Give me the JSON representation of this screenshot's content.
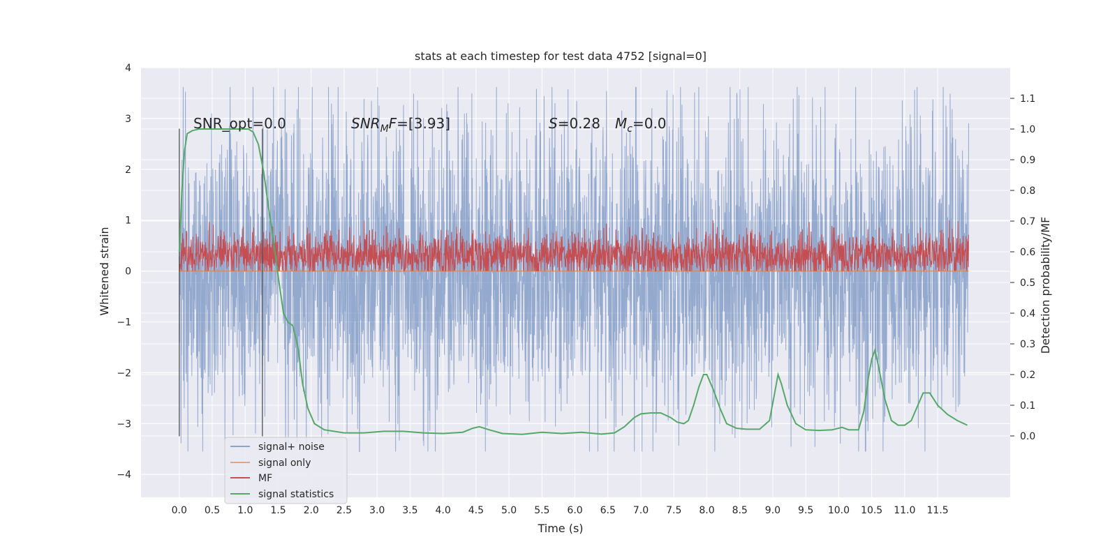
{
  "chart_data": {
    "type": "line",
    "title": "stats at each timestep for test data 4752 [signal=0]",
    "xlabel": "Time (s)",
    "ylabel": "Whitened strain",
    "ylabel_right": "Detection probability/MF",
    "xlim": [
      -0.58,
      12.6
    ],
    "ylim": [
      -4.45,
      4.0
    ],
    "y2lim": [
      -0.2,
      1.2
    ],
    "grid": true,
    "legend_placement": "lower-left",
    "x_ticks": [
      "0.0",
      "0.5",
      "1.0",
      "1.5",
      "2.0",
      "2.5",
      "3.0",
      "3.5",
      "4.0",
      "4.5",
      "5.0",
      "5.5",
      "6.0",
      "6.5",
      "7.0",
      "7.5",
      "8.0",
      "8.5",
      "9.0",
      "9.5",
      "10.0",
      "10.5",
      "11.0",
      "11.5"
    ],
    "y_ticks": [
      "4",
      "3",
      "2",
      "1",
      "0",
      "−1",
      "−2",
      "−3",
      "−4"
    ],
    "y2_ticks": [
      "1.1",
      "1.0",
      "0.9",
      "0.8",
      "0.7",
      "0.6",
      "0.5",
      "0.4",
      "0.3",
      "0.2",
      "0.1",
      "0.0"
    ],
    "annotations": {
      "snr_opt": "SNR_opt=0.0",
      "snr_mf_sym": "SNR",
      "snr_mf_sub": "M",
      "snr_mf_f": "F",
      "snr_mf_val": "=[3.93]",
      "s_sym": "S",
      "s_val": "=0.28",
      "mc_sym": "M",
      "mc_sub": "c",
      "mc_val": "=0.0"
    },
    "vlines": [
      0.0,
      1.26
    ],
    "series": [
      {
        "name": "signal+ noise",
        "color": "#4c72b0",
        "style": "noise",
        "x_range": [
          0.0,
          11.97
        ],
        "band": [
          -1.5,
          1.6
        ],
        "peak_max": 3.62,
        "peak_min": -3.55
      },
      {
        "name": "signal only",
        "color": "#dd8452",
        "style": "flat",
        "values": [
          [
            0.0,
            0.0
          ],
          [
            11.97,
            0.0
          ]
        ]
      },
      {
        "name": "MF",
        "color": "#c44e52",
        "style": "noise",
        "x_range": [
          0.0,
          11.97
        ],
        "band": [
          0.05,
          0.55
        ],
        "peak_max": 1.0,
        "peak_min": 0.0
      },
      {
        "name": "signal statistics",
        "color": "#55a868",
        "axis": "right",
        "values": [
          [
            0.0,
            0.6
          ],
          [
            0.04,
            0.8
          ],
          [
            0.08,
            0.93
          ],
          [
            0.12,
            0.985
          ],
          [
            0.2,
            0.995
          ],
          [
            0.3,
            1.0
          ],
          [
            0.6,
            1.0
          ],
          [
            0.9,
            1.0
          ],
          [
            1.05,
            1.0
          ],
          [
            1.12,
            0.99
          ],
          [
            1.2,
            0.95
          ],
          [
            1.28,
            0.86
          ],
          [
            1.35,
            0.75
          ],
          [
            1.42,
            0.65
          ],
          [
            1.5,
            0.52
          ],
          [
            1.58,
            0.4
          ],
          [
            1.65,
            0.37
          ],
          [
            1.72,
            0.36
          ],
          [
            1.8,
            0.29
          ],
          [
            1.87,
            0.17
          ],
          [
            1.95,
            0.09
          ],
          [
            2.05,
            0.04
          ],
          [
            2.2,
            0.02
          ],
          [
            2.5,
            0.01
          ],
          [
            2.8,
            0.01
          ],
          [
            3.1,
            0.015
          ],
          [
            3.4,
            0.015
          ],
          [
            3.7,
            0.01
          ],
          [
            4.0,
            0.008
          ],
          [
            4.3,
            0.012
          ],
          [
            4.45,
            0.025
          ],
          [
            4.55,
            0.03
          ],
          [
            4.7,
            0.02
          ],
          [
            4.9,
            0.008
          ],
          [
            5.2,
            0.005
          ],
          [
            5.5,
            0.012
          ],
          [
            5.8,
            0.008
          ],
          [
            6.1,
            0.012
          ],
          [
            6.4,
            0.006
          ],
          [
            6.6,
            0.01
          ],
          [
            6.75,
            0.03
          ],
          [
            6.9,
            0.06
          ],
          [
            7.0,
            0.072
          ],
          [
            7.15,
            0.075
          ],
          [
            7.3,
            0.075
          ],
          [
            7.45,
            0.06
          ],
          [
            7.55,
            0.045
          ],
          [
            7.65,
            0.04
          ],
          [
            7.72,
            0.05
          ],
          [
            7.8,
            0.1
          ],
          [
            7.88,
            0.16
          ],
          [
            7.95,
            0.2
          ],
          [
            8.0,
            0.2
          ],
          [
            8.1,
            0.15
          ],
          [
            8.2,
            0.09
          ],
          [
            8.3,
            0.04
          ],
          [
            8.45,
            0.025
          ],
          [
            8.6,
            0.022
          ],
          [
            8.8,
            0.022
          ],
          [
            8.95,
            0.05
          ],
          [
            9.02,
            0.13
          ],
          [
            9.08,
            0.2
          ],
          [
            9.13,
            0.17
          ],
          [
            9.22,
            0.1
          ],
          [
            9.35,
            0.04
          ],
          [
            9.5,
            0.02
          ],
          [
            9.7,
            0.018
          ],
          [
            9.9,
            0.02
          ],
          [
            10.05,
            0.028
          ],
          [
            10.15,
            0.02
          ],
          [
            10.3,
            0.02
          ],
          [
            10.38,
            0.08
          ],
          [
            10.45,
            0.19
          ],
          [
            10.5,
            0.25
          ],
          [
            10.55,
            0.28
          ],
          [
            10.6,
            0.23
          ],
          [
            10.7,
            0.12
          ],
          [
            10.8,
            0.05
          ],
          [
            10.9,
            0.035
          ],
          [
            11.0,
            0.035
          ],
          [
            11.1,
            0.05
          ],
          [
            11.2,
            0.1
          ],
          [
            11.28,
            0.14
          ],
          [
            11.38,
            0.14
          ],
          [
            11.5,
            0.1
          ],
          [
            11.65,
            0.07
          ],
          [
            11.8,
            0.05
          ],
          [
            11.95,
            0.035
          ]
        ]
      }
    ]
  }
}
